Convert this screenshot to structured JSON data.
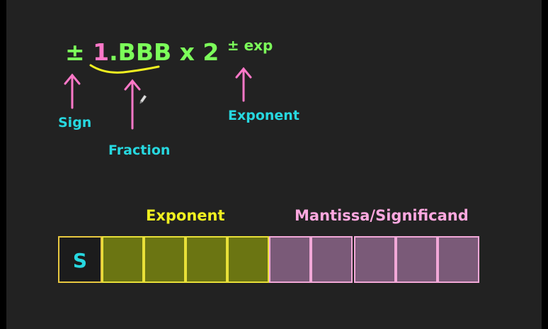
{
  "formula": {
    "sign": "±",
    "one": "1",
    "fraction_part": ".BBB x 2",
    "exponent": "± exp"
  },
  "labels": {
    "sign": "Sign",
    "fraction": "Fraction",
    "exponent_top": "Exponent",
    "exponent_field": "Exponent",
    "mantissa_field": "Mantissa/Significand"
  },
  "bit_layout": {
    "sign_letter": "S",
    "exponent_bits": 4,
    "mantissa_bits": 5
  },
  "colors": {
    "background": "#222222",
    "formula_green": "#7cff5a",
    "formula_pink": "#ff78c8",
    "arrow_pink": "#ff78c8",
    "label_cyan": "#27d8e0",
    "underline_yellow": "#f0f020",
    "exponent_fill": "#6b7512",
    "mantissa_fill": "#7a5a78"
  }
}
